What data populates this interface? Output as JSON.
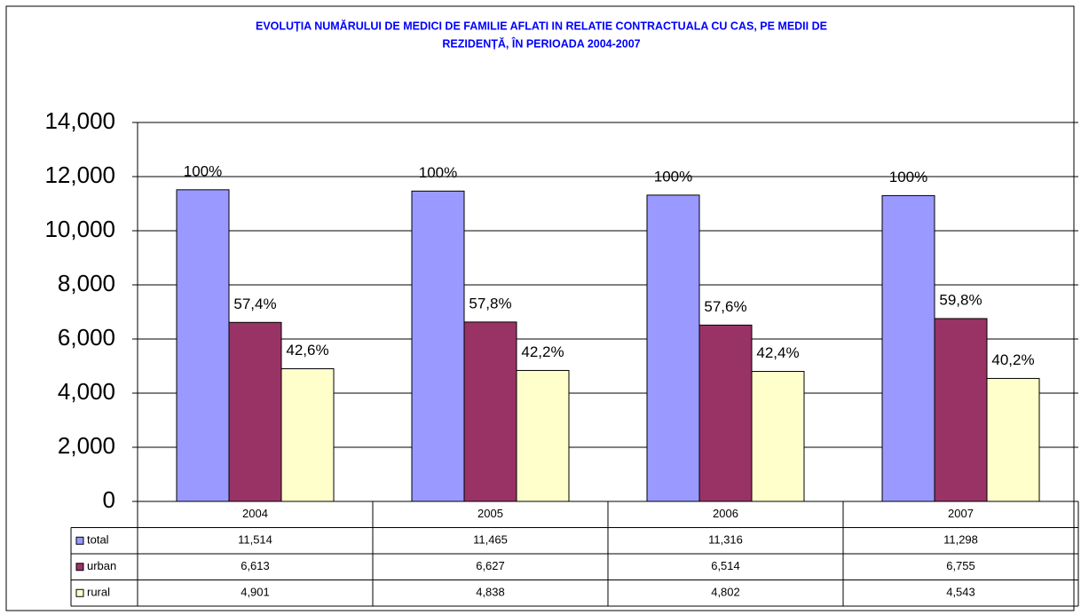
{
  "chart_data": {
    "type": "bar",
    "title": [
      "EVOLUȚIA NUMĂRULUI DE MEDICI DE FAMILIE AFLATI IN RELATIE CONTRACTUALA CU CAS, PE MEDII DE",
      "REZIDENȚĂ, ÎN PERIOADA 2004-2007"
    ],
    "categories": [
      "2004",
      "2005",
      "2006",
      "2007"
    ],
    "series": [
      {
        "name": "total",
        "color": "#9999ff",
        "values": [
          11514,
          11465,
          11316,
          11298
        ],
        "value_labels": [
          "11,514",
          "11,465",
          "11,316",
          "11,298"
        ],
        "share_labels": [
          "100%",
          "100%",
          "100%",
          "100%"
        ]
      },
      {
        "name": "urban",
        "color": "#993366",
        "values": [
          6613,
          6627,
          6514,
          6755
        ],
        "value_labels": [
          "6,613",
          "6,627",
          "6,514",
          "6,755"
        ],
        "share_labels": [
          "57,4%",
          "57,8%",
          "57,6%",
          "59,8%"
        ]
      },
      {
        "name": "rural",
        "color": "#ffffcc",
        "values": [
          4901,
          4838,
          4802,
          4543
        ],
        "value_labels": [
          "4,901",
          "4,838",
          "4,802",
          "4,543"
        ],
        "share_labels": [
          "42,6%",
          "42,2%",
          "42,4%",
          "40,2%"
        ]
      }
    ],
    "ylim": [
      0,
      14000
    ],
    "yticks": [
      0,
      {
        "value": 2000,
        "label": "2,000"
      },
      {
        "value": 4000,
        "label": "4,000"
      },
      {
        "value": 6000,
        "label": "6,000"
      },
      {
        "value": 8000,
        "label": "8,000"
      },
      {
        "value": 10000,
        "label": "10,000"
      },
      {
        "value": 12000,
        "label": "12,000"
      },
      {
        "value": 14000,
        "label": "14,000"
      }
    ],
    "grid": true
  }
}
